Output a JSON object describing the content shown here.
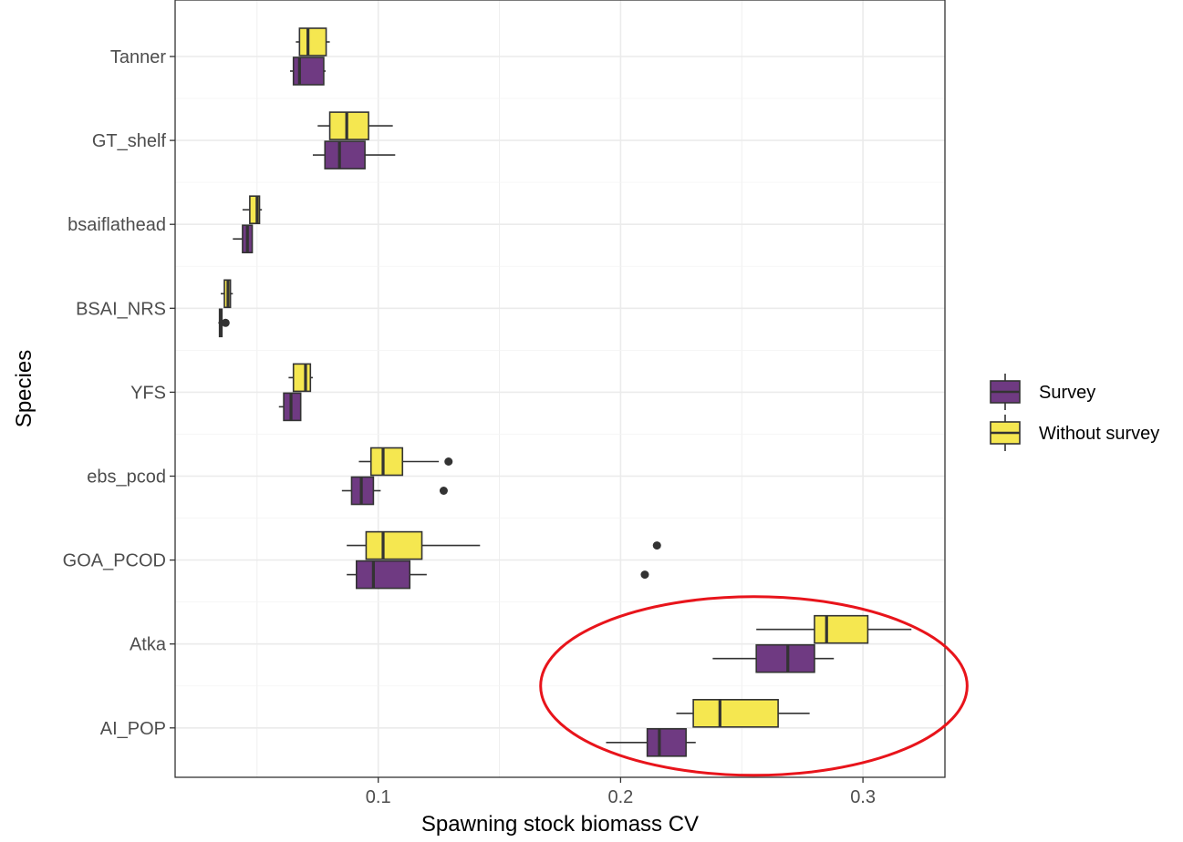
{
  "chart_data": {
    "type": "boxplot",
    "orientation": "horizontal",
    "xlabel": "Spawning stock biomass CV",
    "ylabel": "Species",
    "xlim": [
      0.0,
      0.35
    ],
    "x_ticks": [
      0.1,
      0.2,
      0.3
    ],
    "x_tick_labels": [
      "0.1",
      "0.2",
      "0.3"
    ],
    "grid": true,
    "legend_position": "right",
    "categories": [
      "Tanner",
      "GT_shelf",
      "bsaiflathead",
      "BSAI_NRS",
      "YFS",
      "ebs_pcod",
      "GOA_PCOD",
      "Atka",
      "AI_POP"
    ],
    "series": [
      {
        "name": "Survey",
        "color": "#6f3a82",
        "boxes": [
          {
            "category": "Tanner",
            "whisker_low": 0.0636,
            "q1": 0.065,
            "median": 0.0675,
            "q3": 0.0775,
            "whisker_high": 0.0783,
            "outliers": []
          },
          {
            "category": "GT_shelf",
            "whisker_low": 0.073,
            "q1": 0.078,
            "median": 0.084,
            "q3": 0.0945,
            "whisker_high": 0.107,
            "outliers": []
          },
          {
            "category": "bsaiflathead",
            "whisker_low": 0.04,
            "q1": 0.044,
            "median": 0.046,
            "q3": 0.048,
            "whisker_high": 0.048,
            "outliers": []
          },
          {
            "category": "BSAI_NRS",
            "whisker_low": 0.034,
            "q1": 0.0345,
            "median": 0.035,
            "q3": 0.0355,
            "whisker_high": 0.036,
            "outliers": [
              0.037
            ]
          },
          {
            "category": "YFS",
            "whisker_low": 0.059,
            "q1": 0.061,
            "median": 0.064,
            "q3": 0.068,
            "whisker_high": 0.068,
            "outliers": []
          },
          {
            "category": "ebs_pcod",
            "whisker_low": 0.085,
            "q1": 0.089,
            "median": 0.093,
            "q3": 0.098,
            "whisker_high": 0.101,
            "outliers": [
              0.127
            ]
          },
          {
            "category": "GOA_PCOD",
            "whisker_low": 0.087,
            "q1": 0.091,
            "median": 0.098,
            "q3": 0.113,
            "whisker_high": 0.12,
            "outliers": [
              0.21
            ]
          },
          {
            "category": "Atka",
            "whisker_low": 0.238,
            "q1": 0.256,
            "median": 0.269,
            "q3": 0.28,
            "whisker_high": 0.288,
            "outliers": []
          },
          {
            "category": "AI_POP",
            "whisker_low": 0.194,
            "q1": 0.211,
            "median": 0.216,
            "q3": 0.227,
            "whisker_high": 0.231,
            "outliers": []
          }
        ]
      },
      {
        "name": "Without survey",
        "color": "#f5e750",
        "boxes": [
          {
            "category": "Tanner",
            "whisker_low": 0.066,
            "q1": 0.0675,
            "median": 0.071,
            "q3": 0.0785,
            "whisker_high": 0.08,
            "outliers": []
          },
          {
            "category": "GT_shelf",
            "whisker_low": 0.075,
            "q1": 0.08,
            "median": 0.087,
            "q3": 0.096,
            "whisker_high": 0.106,
            "outliers": []
          },
          {
            "category": "bsaiflathead",
            "whisker_low": 0.044,
            "q1": 0.047,
            "median": 0.05,
            "q3": 0.051,
            "whisker_high": 0.052,
            "outliers": []
          },
          {
            "category": "BSAI_NRS",
            "whisker_low": 0.035,
            "q1": 0.0365,
            "median": 0.038,
            "q3": 0.039,
            "whisker_high": 0.04,
            "outliers": []
          },
          {
            "category": "YFS",
            "whisker_low": 0.063,
            "q1": 0.065,
            "median": 0.07,
            "q3": 0.072,
            "whisker_high": 0.073,
            "outliers": []
          },
          {
            "category": "ebs_pcod",
            "whisker_low": 0.092,
            "q1": 0.097,
            "median": 0.102,
            "q3": 0.11,
            "whisker_high": 0.125,
            "outliers": [
              0.129
            ]
          },
          {
            "category": "GOA_PCOD",
            "whisker_low": 0.087,
            "q1": 0.095,
            "median": 0.102,
            "q3": 0.118,
            "whisker_high": 0.142,
            "outliers": [
              0.215
            ]
          },
          {
            "category": "Atka",
            "whisker_low": 0.256,
            "q1": 0.28,
            "median": 0.285,
            "q3": 0.302,
            "whisker_high": 0.32,
            "outliers": []
          },
          {
            "category": "AI_POP",
            "whisker_low": 0.223,
            "q1": 0.23,
            "median": 0.241,
            "q3": 0.265,
            "whisker_high": 0.278,
            "outliers": []
          }
        ]
      }
    ],
    "annotations": [
      {
        "type": "ellipse",
        "color": "#e8141b",
        "center_x": 0.255,
        "center_category_between": [
          "Atka",
          "AI_POP"
        ],
        "half_width_x": 0.088
      }
    ]
  }
}
